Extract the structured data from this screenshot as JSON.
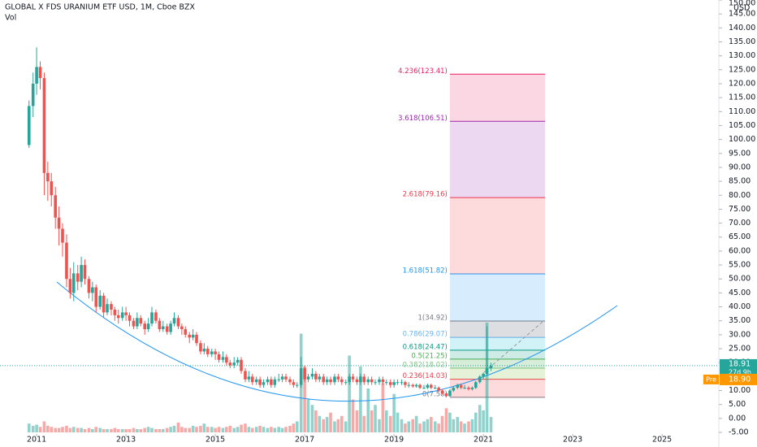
{
  "chart_data": {
    "type": "candlestick",
    "title": "GLOBAL X FDS URANIUM ETF USD, 1M, Cboe BZX",
    "volume_label": "Vol",
    "currency": "USD",
    "up_color": "#26a69a",
    "down_color": "#ef5350",
    "xlim": [
      2010.18,
      2026.27
    ],
    "xticks": [
      2011,
      2013,
      2015,
      2017,
      2019,
      2021,
      2023,
      2025
    ],
    "ylim": [
      -5,
      150
    ],
    "yticks": [
      {
        "value": -5,
        "label": "-5.00"
      },
      {
        "value": 0,
        "label": "0.00"
      },
      {
        "value": 5,
        "label": "5.00"
      },
      {
        "value": 10,
        "label": "10.00"
      },
      {
        "value": 15,
        "label": "15.00"
      },
      {
        "value": 20,
        "label": "20.00"
      },
      {
        "value": 25,
        "label": "25.00"
      },
      {
        "value": 30,
        "label": "30.00"
      },
      {
        "value": 35,
        "label": "35.00"
      },
      {
        "value": 40,
        "label": "40.00"
      },
      {
        "value": 45,
        "label": "45.00"
      },
      {
        "value": 50,
        "label": "50.00"
      },
      {
        "value": 55,
        "label": "55.00"
      },
      {
        "value": 60,
        "label": "60.00"
      },
      {
        "value": 65,
        "label": "65.00"
      },
      {
        "value": 70,
        "label": "70.00"
      },
      {
        "value": 75,
        "label": "75.00"
      },
      {
        "value": 80,
        "label": "80.00"
      },
      {
        "value": 85,
        "label": "85.00"
      },
      {
        "value": 90,
        "label": "90.00"
      },
      {
        "value": 95,
        "label": "95.00"
      },
      {
        "value": 100,
        "label": "100.00"
      },
      {
        "value": 105,
        "label": "105.00"
      },
      {
        "value": 110,
        "label": "110.00"
      },
      {
        "value": 115,
        "label": "115.00"
      },
      {
        "value": 120,
        "label": "120.00"
      },
      {
        "value": 125,
        "label": "125.00"
      },
      {
        "value": 130,
        "label": "130.00"
      },
      {
        "value": 135,
        "label": "135.00"
      },
      {
        "value": 140,
        "label": "140.00"
      },
      {
        "value": 145,
        "label": "145.00"
      },
      {
        "value": 150,
        "label": "150.00"
      }
    ],
    "x": [
      2010.83,
      2010.92,
      2011.0,
      2011.08,
      2011.17,
      2011.25,
      2011.33,
      2011.42,
      2011.5,
      2011.58,
      2011.67,
      2011.75,
      2011.83,
      2011.92,
      2012.0,
      2012.08,
      2012.17,
      2012.25,
      2012.33,
      2012.42,
      2012.5,
      2012.58,
      2012.67,
      2012.75,
      2012.83,
      2012.92,
      2013.0,
      2013.08,
      2013.17,
      2013.25,
      2013.33,
      2013.42,
      2013.5,
      2013.58,
      2013.67,
      2013.75,
      2013.83,
      2013.92,
      2014.0,
      2014.08,
      2014.17,
      2014.25,
      2014.33,
      2014.42,
      2014.5,
      2014.58,
      2014.67,
      2014.75,
      2014.83,
      2014.92,
      2015.0,
      2015.08,
      2015.17,
      2015.25,
      2015.33,
      2015.42,
      2015.5,
      2015.58,
      2015.67,
      2015.75,
      2015.83,
      2015.92,
      2016.0,
      2016.08,
      2016.17,
      2016.25,
      2016.33,
      2016.42,
      2016.5,
      2016.58,
      2016.67,
      2016.75,
      2016.83,
      2016.92,
      2017.0,
      2017.08,
      2017.17,
      2017.25,
      2017.33,
      2017.42,
      2017.5,
      2017.58,
      2017.67,
      2017.75,
      2017.83,
      2017.92,
      2018.0,
      2018.08,
      2018.17,
      2018.25,
      2018.33,
      2018.42,
      2018.5,
      2018.58,
      2018.67,
      2018.75,
      2018.83,
      2018.92,
      2019.0,
      2019.08,
      2019.17,
      2019.25,
      2019.33,
      2019.42,
      2019.5,
      2019.58,
      2019.67,
      2019.75,
      2019.83,
      2019.92,
      2020.0,
      2020.08,
      2020.17,
      2020.25,
      2020.33,
      2020.42,
      2020.5,
      2020.58,
      2020.67,
      2020.75,
      2020.83,
      2020.92,
      2021.0,
      2021.08,
      2021.17
    ],
    "open": [
      98,
      112,
      120,
      126,
      122,
      88,
      85,
      80,
      72,
      68,
      63,
      50,
      45,
      52,
      49,
      55,
      50,
      45,
      47,
      40,
      44,
      38,
      41,
      39,
      37,
      36,
      38,
      37,
      35,
      33,
      36,
      34,
      32,
      34,
      38,
      35,
      32,
      33,
      31,
      34,
      36,
      33,
      32,
      30,
      29,
      30,
      27,
      24,
      25,
      23,
      24,
      23,
      21,
      22,
      20,
      19,
      20,
      21,
      17,
      14,
      15,
      13,
      14,
      12,
      13,
      14,
      12,
      14,
      14,
      15,
      14,
      13,
      12,
      12,
      18,
      14,
      15,
      16,
      14,
      15,
      13,
      14,
      13,
      15,
      14,
      13,
      13,
      15,
      14,
      13,
      15,
      13,
      14,
      13,
      13,
      14,
      13,
      13,
      12,
      13,
      13,
      13,
      12,
      12,
      11.5,
      12,
      11,
      11,
      12,
      11,
      11,
      10,
      9,
      8,
      10,
      11,
      12,
      11,
      11,
      10.5,
      11,
      13,
      15,
      16,
      18
    ],
    "high": [
      114,
      124,
      133,
      128,
      124,
      92,
      88,
      83,
      76,
      70,
      66,
      54,
      56,
      55,
      58,
      57,
      51,
      49,
      48,
      46,
      45,
      43,
      42,
      40,
      39,
      40,
      40,
      38,
      36,
      38,
      37,
      35,
      36,
      40,
      39,
      36,
      35,
      34,
      35,
      38,
      37,
      34,
      33,
      31,
      32,
      31,
      28,
      27,
      26,
      25,
      25,
      24,
      24,
      23,
      21,
      22,
      22,
      22,
      18,
      17,
      16,
      15,
      15,
      14,
      15,
      15,
      15,
      16,
      16,
      16,
      15,
      14,
      13,
      22,
      19,
      16,
      18,
      17,
      16,
      16,
      15,
      15,
      16,
      16,
      15,
      14,
      16,
      16,
      15,
      16,
      16,
      15,
      15,
      14,
      15,
      15,
      14,
      14,
      14,
      14,
      14,
      13.5,
      13,
      12.5,
      12.5,
      12.5,
      12,
      12.5,
      12.5,
      12,
      11.5,
      10.5,
      9.5,
      10.5,
      11.5,
      12.5,
      12.5,
      12,
      11.5,
      11.5,
      13.5,
      15.5,
      16.5,
      33,
      20
    ],
    "low": [
      97,
      108,
      116,
      118,
      80,
      78,
      76,
      68,
      62,
      58,
      47,
      43,
      42,
      46,
      47,
      48,
      43,
      42,
      38,
      39,
      36,
      37,
      37,
      35,
      34,
      35,
      35,
      33,
      32,
      32,
      33,
      30,
      31,
      33,
      34,
      31,
      31,
      30,
      30,
      33,
      32,
      30,
      29,
      27,
      28,
      26,
      23,
      23,
      22,
      22,
      21,
      20,
      20,
      19,
      18,
      18,
      19,
      16,
      13,
      13,
      12,
      12,
      11,
      11,
      12,
      11,
      11,
      13,
      13,
      13,
      12,
      11,
      11,
      11,
      13,
      13,
      14,
      13,
      13,
      12,
      12,
      12,
      12,
      13,
      12,
      12,
      12,
      13,
      12,
      12,
      12,
      12,
      12,
      12,
      12,
      12,
      12,
      11,
      11,
      12,
      12,
      11,
      11,
      11,
      11,
      10.5,
      10.5,
      10.5,
      10.5,
      10.5,
      9.5,
      8.5,
      7.58,
      7.8,
      9.5,
      10.5,
      10.5,
      10.5,
      10,
      10,
      10.5,
      12.5,
      14,
      15.5,
      17
    ],
    "close": [
      112,
      120,
      126,
      122,
      88,
      85,
      80,
      72,
      68,
      63,
      50,
      45,
      52,
      49,
      55,
      50,
      45,
      47,
      40,
      44,
      38,
      41,
      39,
      37,
      36,
      38,
      37,
      35,
      33,
      36,
      34,
      32,
      34,
      38,
      35,
      32,
      33,
      31,
      34,
      36,
      33,
      32,
      30,
      29,
      30,
      27,
      24,
      25,
      23,
      24,
      23,
      21,
      22,
      20,
      19,
      20,
      21,
      17,
      14,
      15,
      13,
      14,
      12,
      13,
      14,
      12,
      14,
      14,
      15,
      14,
      13,
      12,
      12,
      18,
      14,
      15,
      16,
      14,
      15,
      13,
      14,
      13,
      15,
      14,
      13,
      13,
      15,
      14,
      13,
      15,
      13,
      14,
      13,
      13,
      14,
      13,
      13,
      12,
      13,
      13,
      13,
      12,
      12,
      11.5,
      12,
      11,
      11,
      12,
      11,
      11,
      10,
      9,
      8,
      10,
      11,
      12,
      11,
      11,
      10.5,
      11,
      13,
      15,
      16,
      18,
      18.9
    ],
    "volume": [
      8,
      6,
      7,
      5,
      10,
      6,
      5,
      4,
      4,
      5,
      6,
      4,
      5,
      4,
      4,
      3,
      4,
      3,
      5,
      4,
      3,
      3,
      3,
      4,
      3,
      3,
      3,
      3,
      4,
      3,
      3,
      4,
      5,
      4,
      3,
      3,
      3,
      4,
      5,
      6,
      9,
      5,
      4,
      4,
      6,
      5,
      6,
      8,
      5,
      5,
      4,
      5,
      4,
      5,
      6,
      4,
      5,
      7,
      8,
      5,
      4,
      5,
      6,
      5,
      4,
      5,
      4,
      5,
      4,
      5,
      6,
      8,
      10,
      90,
      60,
      30,
      25,
      20,
      15,
      12,
      14,
      18,
      10,
      12,
      15,
      10,
      70,
      30,
      20,
      60,
      15,
      40,
      20,
      25,
      12,
      45,
      20,
      15,
      35,
      18,
      12,
      8,
      10,
      12,
      15,
      8,
      10,
      12,
      14,
      10,
      8,
      15,
      22,
      18,
      12,
      14,
      10,
      8,
      10,
      12,
      18,
      25,
      20,
      100,
      14
    ],
    "fib_x": [
      2020.25,
      2022.38
    ],
    "fib_levels": [
      {
        "label": "0(7.58)",
        "value": 7.58,
        "color": "#787b86"
      },
      {
        "label": "0.236(14.03)",
        "value": 14.03,
        "color": "#f23645",
        "zone_color": "rgba(242,54,69,0.18)"
      },
      {
        "label": "0.382(18.02)",
        "value": 18.02,
        "color": "#81c784",
        "zone_color": "rgba(156,204,101,0.25)"
      },
      {
        "label": "0.5(21.25)",
        "value": 21.25,
        "color": "#4caf50",
        "zone_color": "rgba(76,175,80,0.22)"
      },
      {
        "label": "0.618(24.47)",
        "value": 24.47,
        "color": "#089981",
        "zone_color": "rgba(8,153,129,0.2)"
      },
      {
        "label": "0.786(29.07)",
        "value": 29.07,
        "color": "#64b5f6",
        "zone_color": "rgba(0,188,212,0.18)"
      },
      {
        "label": "1(34.92)",
        "value": 34.92,
        "color": "#787b86",
        "zone_color": "rgba(120,123,134,0.25)"
      },
      {
        "label": "1.618(51.82)",
        "value": 51.82,
        "color": "#2196f3",
        "zone_color": "rgba(33,150,243,0.18)"
      },
      {
        "label": "2.618(79.16)",
        "value": 79.16,
        "color": "#f23645",
        "zone_color": "rgba(242,54,69,0.18)"
      },
      {
        "label": "3.618(106.51)",
        "value": 106.51,
        "color": "#9c27b0",
        "zone_color": "rgba(156,39,176,0.18)"
      },
      {
        "label": "4.236(123.41)",
        "value": 123.41,
        "color": "#e91e63",
        "zone_color": "rgba(233,30,99,0.18)"
      }
    ],
    "last_price": 18.91,
    "countdown": "27d 9h",
    "pre_label": "Pre",
    "pre_price": {
      "value": 18.9,
      "label": "18.90"
    }
  }
}
